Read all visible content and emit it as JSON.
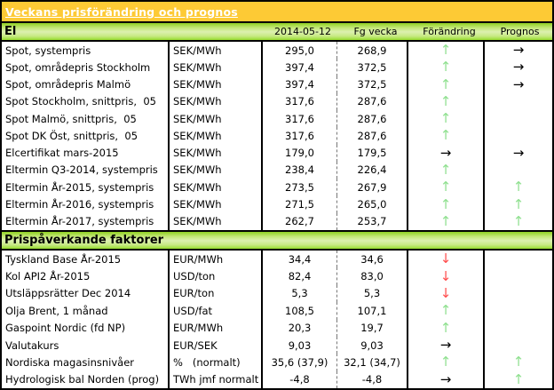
{
  "title": "Veckans prisförändring och prognos",
  "columns": {
    "date": "2014-05-12",
    "prev_week": "Fg vecka",
    "change": "Förändring",
    "forecast": "Prognos"
  },
  "arrows": {
    "up": {
      "glyph": "↑",
      "color": "#8FE08F",
      "name": "up-arrow-icon"
    },
    "down": {
      "glyph": "↓",
      "color": "#FF4D4D",
      "name": "down-arrow-icon"
    },
    "right": {
      "glyph": "→",
      "color": "#000000",
      "name": "right-arrow-icon"
    },
    "none": {
      "glyph": "",
      "color": "transparent",
      "name": "no-arrow"
    }
  },
  "colors": {
    "title_bar": "#FDCA35",
    "title_text": "#FFFFFF",
    "section_gradient_top": "#8FD022",
    "section_gradient_mid": "#DCF0B0",
    "section_gradient_bottom": "#97DC2E",
    "border": "#000000",
    "up_arrow": "#8FE08F",
    "down_arrow": "#FF4D4D",
    "right_arrow": "#000000"
  },
  "sections": [
    {
      "label": "El",
      "rows": [
        {
          "name": "Spot, systempris",
          "unit": "SEK/MWh",
          "value": "295,0",
          "prev": "268,9",
          "change": "up",
          "forecast": "right"
        },
        {
          "name": "Spot, områdepris Stockholm",
          "unit": "SEK/MWh",
          "value": "397,4",
          "prev": "372,5",
          "change": "up",
          "forecast": "right"
        },
        {
          "name": "Spot, områdepris Malmö",
          "unit": "SEK/MWh",
          "value": "397,4",
          "prev": "372,5",
          "change": "up",
          "forecast": "right"
        },
        {
          "name": "Spot Stockholm, snittpris,  05",
          "unit": "SEK/MWh",
          "value": "317,6",
          "prev": "287,6",
          "change": "up",
          "forecast": "none"
        },
        {
          "name": "Spot Malmö, snittpris,  05",
          "unit": "SEK/MWh",
          "value": "317,6",
          "prev": "287,6",
          "change": "up",
          "forecast": "none"
        },
        {
          "name": "Spot DK Öst, snittpris,  05",
          "unit": "SEK/MWh",
          "value": "317,6",
          "prev": "287,6",
          "change": "up",
          "forecast": "none"
        },
        {
          "name": "Elcertifikat mars-2015",
          "unit": "SEK/MWh",
          "value": "179,0",
          "prev": "179,5",
          "change": "right",
          "forecast": "right"
        },
        {
          "name": "Eltermin Q3-2014, systempris",
          "unit": "SEK/MWh",
          "value": "238,4",
          "prev": "226,4",
          "change": "up",
          "forecast": "none"
        },
        {
          "name": "Eltermin År-2015, systempris",
          "unit": "SEK/MWh",
          "value": "273,5",
          "prev": "267,9",
          "change": "up",
          "forecast": "up"
        },
        {
          "name": "Eltermin År-2016, systempris",
          "unit": "SEK/MWh",
          "value": "271,5",
          "prev": "265,0",
          "change": "up",
          "forecast": "up"
        },
        {
          "name": "Eltermin År-2017, systempris",
          "unit": "SEK/MWh",
          "value": "262,7",
          "prev": "253,7",
          "change": "up",
          "forecast": "up"
        }
      ]
    },
    {
      "label": "Prispåverkande faktorer",
      "rows": [
        {
          "name": "Tyskland Base År-2015",
          "unit": "EUR/MWh",
          "value": "34,4",
          "prev": "34,6",
          "change": "down",
          "forecast": "none"
        },
        {
          "name": "Kol API2 År-2015",
          "unit": "USD/ton",
          "value": "82,4",
          "prev": "83,0",
          "change": "down",
          "forecast": "none"
        },
        {
          "name": "Utsläppsrätter Dec 2014",
          "unit": "EUR/ton",
          "value": "5,3",
          "prev": "5,3",
          "change": "down",
          "forecast": "none"
        },
        {
          "name": "Olja Brent, 1 månad",
          "unit": "USD/fat",
          "value": "108,5",
          "prev": "107,1",
          "change": "up",
          "forecast": "none"
        },
        {
          "name": "Gaspoint Nordic (fd NP)",
          "unit": "EUR/MWh",
          "value": "20,3",
          "prev": "19,7",
          "change": "up",
          "forecast": "none"
        },
        {
          "name": "Valutakurs",
          "unit": "EUR/SEK",
          "value": "9,03",
          "prev": "9,03",
          "change": "right",
          "forecast": "none"
        },
        {
          "name": "Nordiska magasinsnivåer",
          "unit": "%   (normalt)",
          "value": "35,6 (37,9)",
          "prev": "32,1 (34,7)",
          "change": "up",
          "forecast": "up"
        },
        {
          "name": "Hydrologisk bal Norden (prog)",
          "unit": "TWh jmf normalt",
          "value": "-4,8",
          "prev": "-4,8",
          "change": "right",
          "forecast": "up"
        }
      ]
    }
  ]
}
